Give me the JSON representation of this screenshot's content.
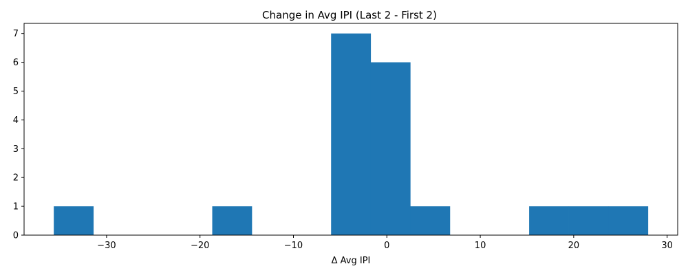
{
  "chart_data": {
    "type": "bar",
    "title": "Change in Avg IPI (Last 2 - First 2)",
    "xlabel": "Δ Avg IPI",
    "ylabel": "",
    "bin_edges": [
      -35.65,
      -31.41,
      -27.17,
      -22.93,
      -18.69,
      -14.45,
      -10.21,
      -5.97,
      -1.73,
      2.51,
      6.75,
      10.99,
      15.23,
      19.47,
      23.71,
      27.95
    ],
    "counts": [
      1,
      0,
      0,
      0,
      1,
      0,
      0,
      7,
      6,
      1,
      0,
      0,
      1,
      1,
      1
    ],
    "xlim": [
      -38.83,
      31.13
    ],
    "ylim": [
      0,
      7.35
    ],
    "xticks": [
      -30,
      -20,
      -10,
      0,
      10,
      20,
      30
    ],
    "xtick_labels": [
      "−30",
      "−20",
      "−10",
      "0",
      "10",
      "20",
      "30"
    ],
    "yticks": [
      0,
      1,
      2,
      3,
      4,
      5,
      6,
      7
    ],
    "ytick_labels": [
      "0",
      "1",
      "2",
      "3",
      "4",
      "5",
      "6",
      "7"
    ],
    "bar_color": "#1f77b4",
    "grid": false,
    "legend": "none"
  }
}
